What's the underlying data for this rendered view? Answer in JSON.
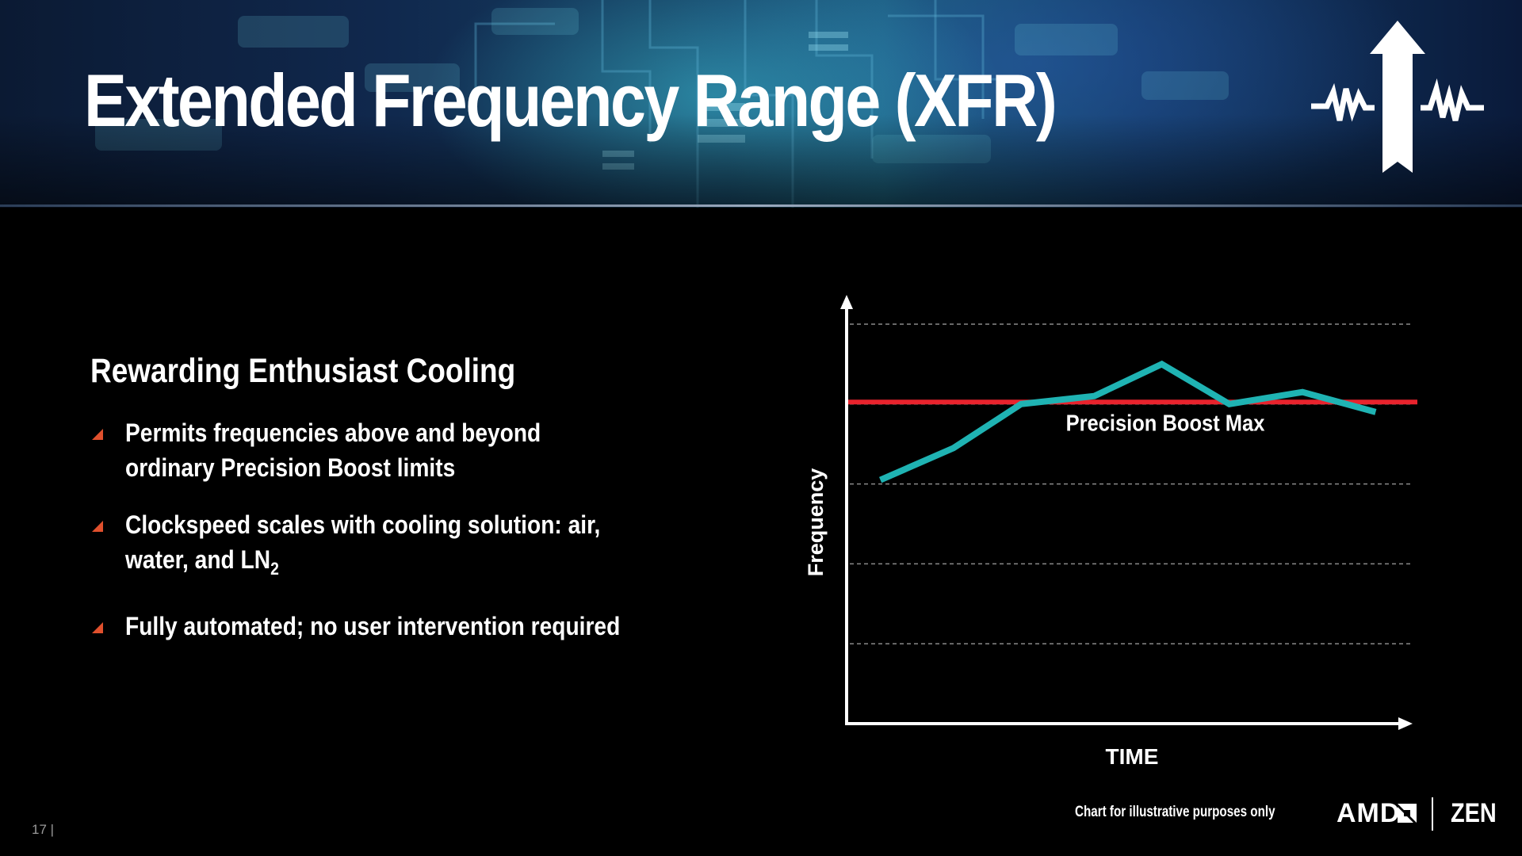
{
  "slide": {
    "title": "Extended Frequency Range (XFR)",
    "section_heading": "Rewarding Enthusiast Cooling",
    "bullets": [
      {
        "text": "Permits frequencies above and beyond ordinary Precision Boost limits"
      },
      {
        "text_before": "Clockspeed scales with cooling solution: air, water, and LN",
        "subscript": "2"
      },
      {
        "text": "Fully automated; no user intervention required"
      }
    ],
    "bullet_color": "#e0502d",
    "disclaimer": "Chart for illustrative purposes only",
    "page_number": "17 |",
    "brand": {
      "amd": "AMD",
      "zen": "ZEN"
    }
  },
  "chart_data": {
    "type": "line",
    "xlabel": "TIME",
    "ylabel": "Frequency",
    "xlim": [
      0,
      100
    ],
    "ylim": [
      0,
      100
    ],
    "grid": "dashed horizontal",
    "gridlines_y": [
      20,
      40,
      60,
      80,
      100
    ],
    "series": [
      {
        "color": "#1fb3b3",
        "x": [
          6,
          19,
          31,
          44,
          56,
          68,
          81,
          94
        ],
        "y": [
          61,
          69,
          80,
          82,
          90,
          80,
          83,
          78
        ]
      }
    ],
    "reference_lines": [
      {
        "name": "Precision Boost Max",
        "y": 80.5,
        "color": "#e8232d"
      }
    ]
  }
}
